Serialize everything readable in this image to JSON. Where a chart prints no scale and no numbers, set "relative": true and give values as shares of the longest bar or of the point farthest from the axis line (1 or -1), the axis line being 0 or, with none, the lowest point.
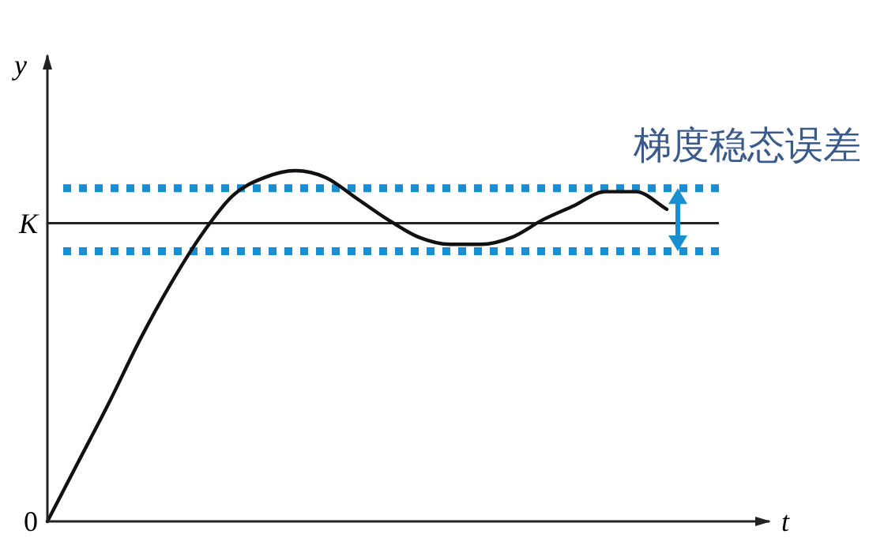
{
  "chart_data": {
    "type": "line",
    "relative": true,
    "categories": [
      null,
      null,
      null,
      null,
      null,
      null,
      null,
      null,
      null,
      null,
      null,
      null,
      null,
      null,
      null,
      null,
      null,
      null,
      null,
      null,
      null
    ],
    "series": [
      {
        "color": "#111111",
        "values": [
          0,
          0.17,
          0.34,
          0.52,
          0.68,
          0.82,
          0.93,
          0.98,
          1,
          0.98,
          0.92,
          0.86,
          0.81,
          0.79,
          0.79,
          0.81,
          0.86,
          0.9,
          0.94,
          0.94,
          0.89
        ]
      }
    ],
    "xlabel": "t",
    "ylabel": "y",
    "ref_lines": [
      {
        "axis": "y",
        "value": 0.85,
        "color": "#222222",
        "line_style": "solid",
        "label": "K"
      },
      {
        "axis": "y",
        "value": 0.95,
        "color": "#1a8fd0",
        "line_style": "dotted"
      },
      {
        "axis": "y",
        "value": 0.77,
        "color": "#1a8fd0",
        "line_style": "dotted"
      }
    ],
    "annotations": [
      "0",
      "梯度稳态误差"
    ]
  }
}
